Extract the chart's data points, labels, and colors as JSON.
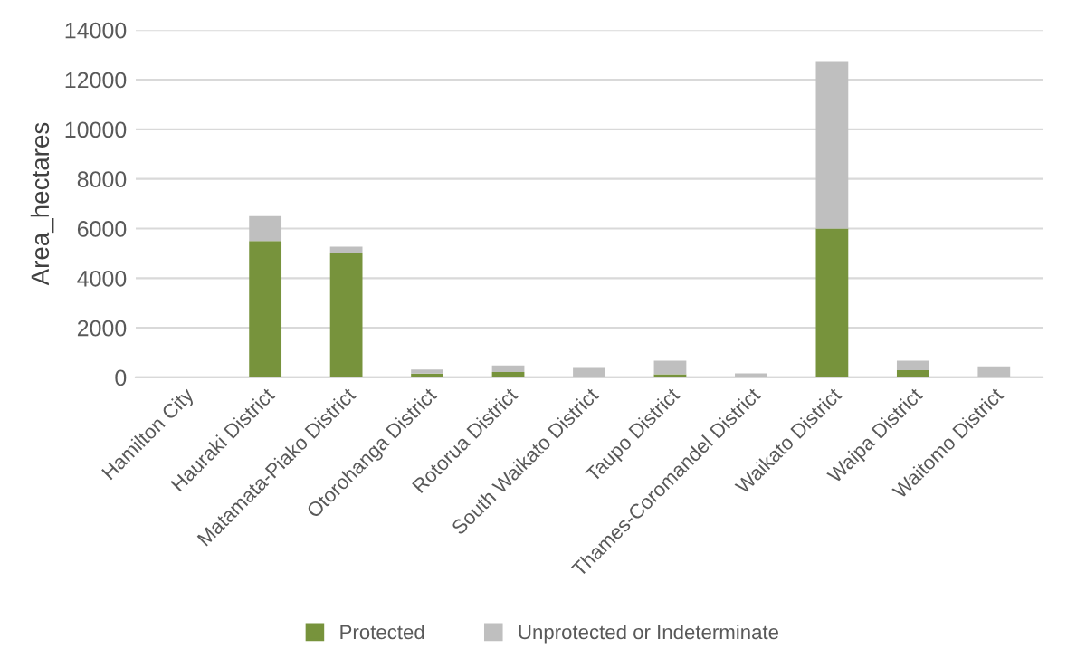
{
  "chart_data": {
    "type": "bar",
    "stacked": true,
    "ylabel": "Area_hectares",
    "categories": [
      "Hamilton City",
      "Hauraki District",
      "Matamata-Piako District",
      "Otorohanga District",
      "Rotorua District",
      "South Waikato District",
      "Taupo District",
      "Thames-Coromandel District",
      "Waikato District",
      "Waipa District",
      "Waitomo District"
    ],
    "series": [
      {
        "name": "Protected",
        "color": "#77933c",
        "values": [
          0,
          5500,
          5000,
          150,
          220,
          0,
          130,
          0,
          6000,
          290,
          0
        ]
      },
      {
        "name": "Unprotected or Indeterminate",
        "color": "#bfbfbf",
        "values": [
          0,
          1000,
          270,
          170,
          260,
          380,
          540,
          160,
          6750,
          380,
          450
        ]
      }
    ],
    "ylim": [
      0,
      14000
    ],
    "yticks": [
      0,
      2000,
      4000,
      6000,
      8000,
      10000,
      12000,
      14000
    ],
    "grid": "y",
    "legend": "bottom"
  }
}
